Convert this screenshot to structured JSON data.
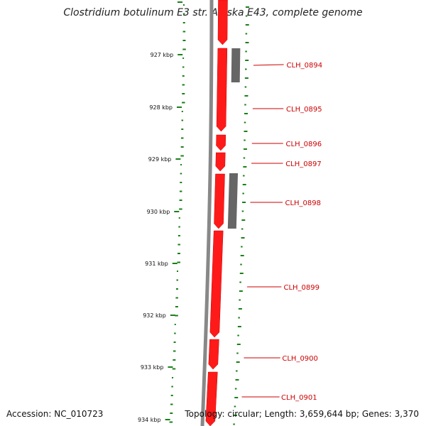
{
  "title": "Clostridium botulinum E3 str. Alaska E43, complete genome",
  "footer": {
    "accession": "Accession: NC_010723",
    "summary": "Topology: circular; Length: 3,659,644 bp; Genes: 3,370"
  },
  "colors": {
    "forward_gene": "#ff1a1a",
    "gene_label": "#cc0000",
    "gray_feature": "#666666",
    "gc_track": "#1a7f1a",
    "backbone": "#888888"
  },
  "tick_labels": [
    "927 kbp",
    "928 kbp",
    "929 kbp",
    "930 kbp",
    "931 kbp",
    "932 kbp",
    "933 kbp",
    "934 kbp"
  ],
  "gene_labels": [
    "CLH_0894",
    "CLH_0895",
    "CLH_0896",
    "CLH_0897",
    "CLH_0898",
    "CLH_0899",
    "CLH_0900",
    "CLH_0901"
  ]
}
